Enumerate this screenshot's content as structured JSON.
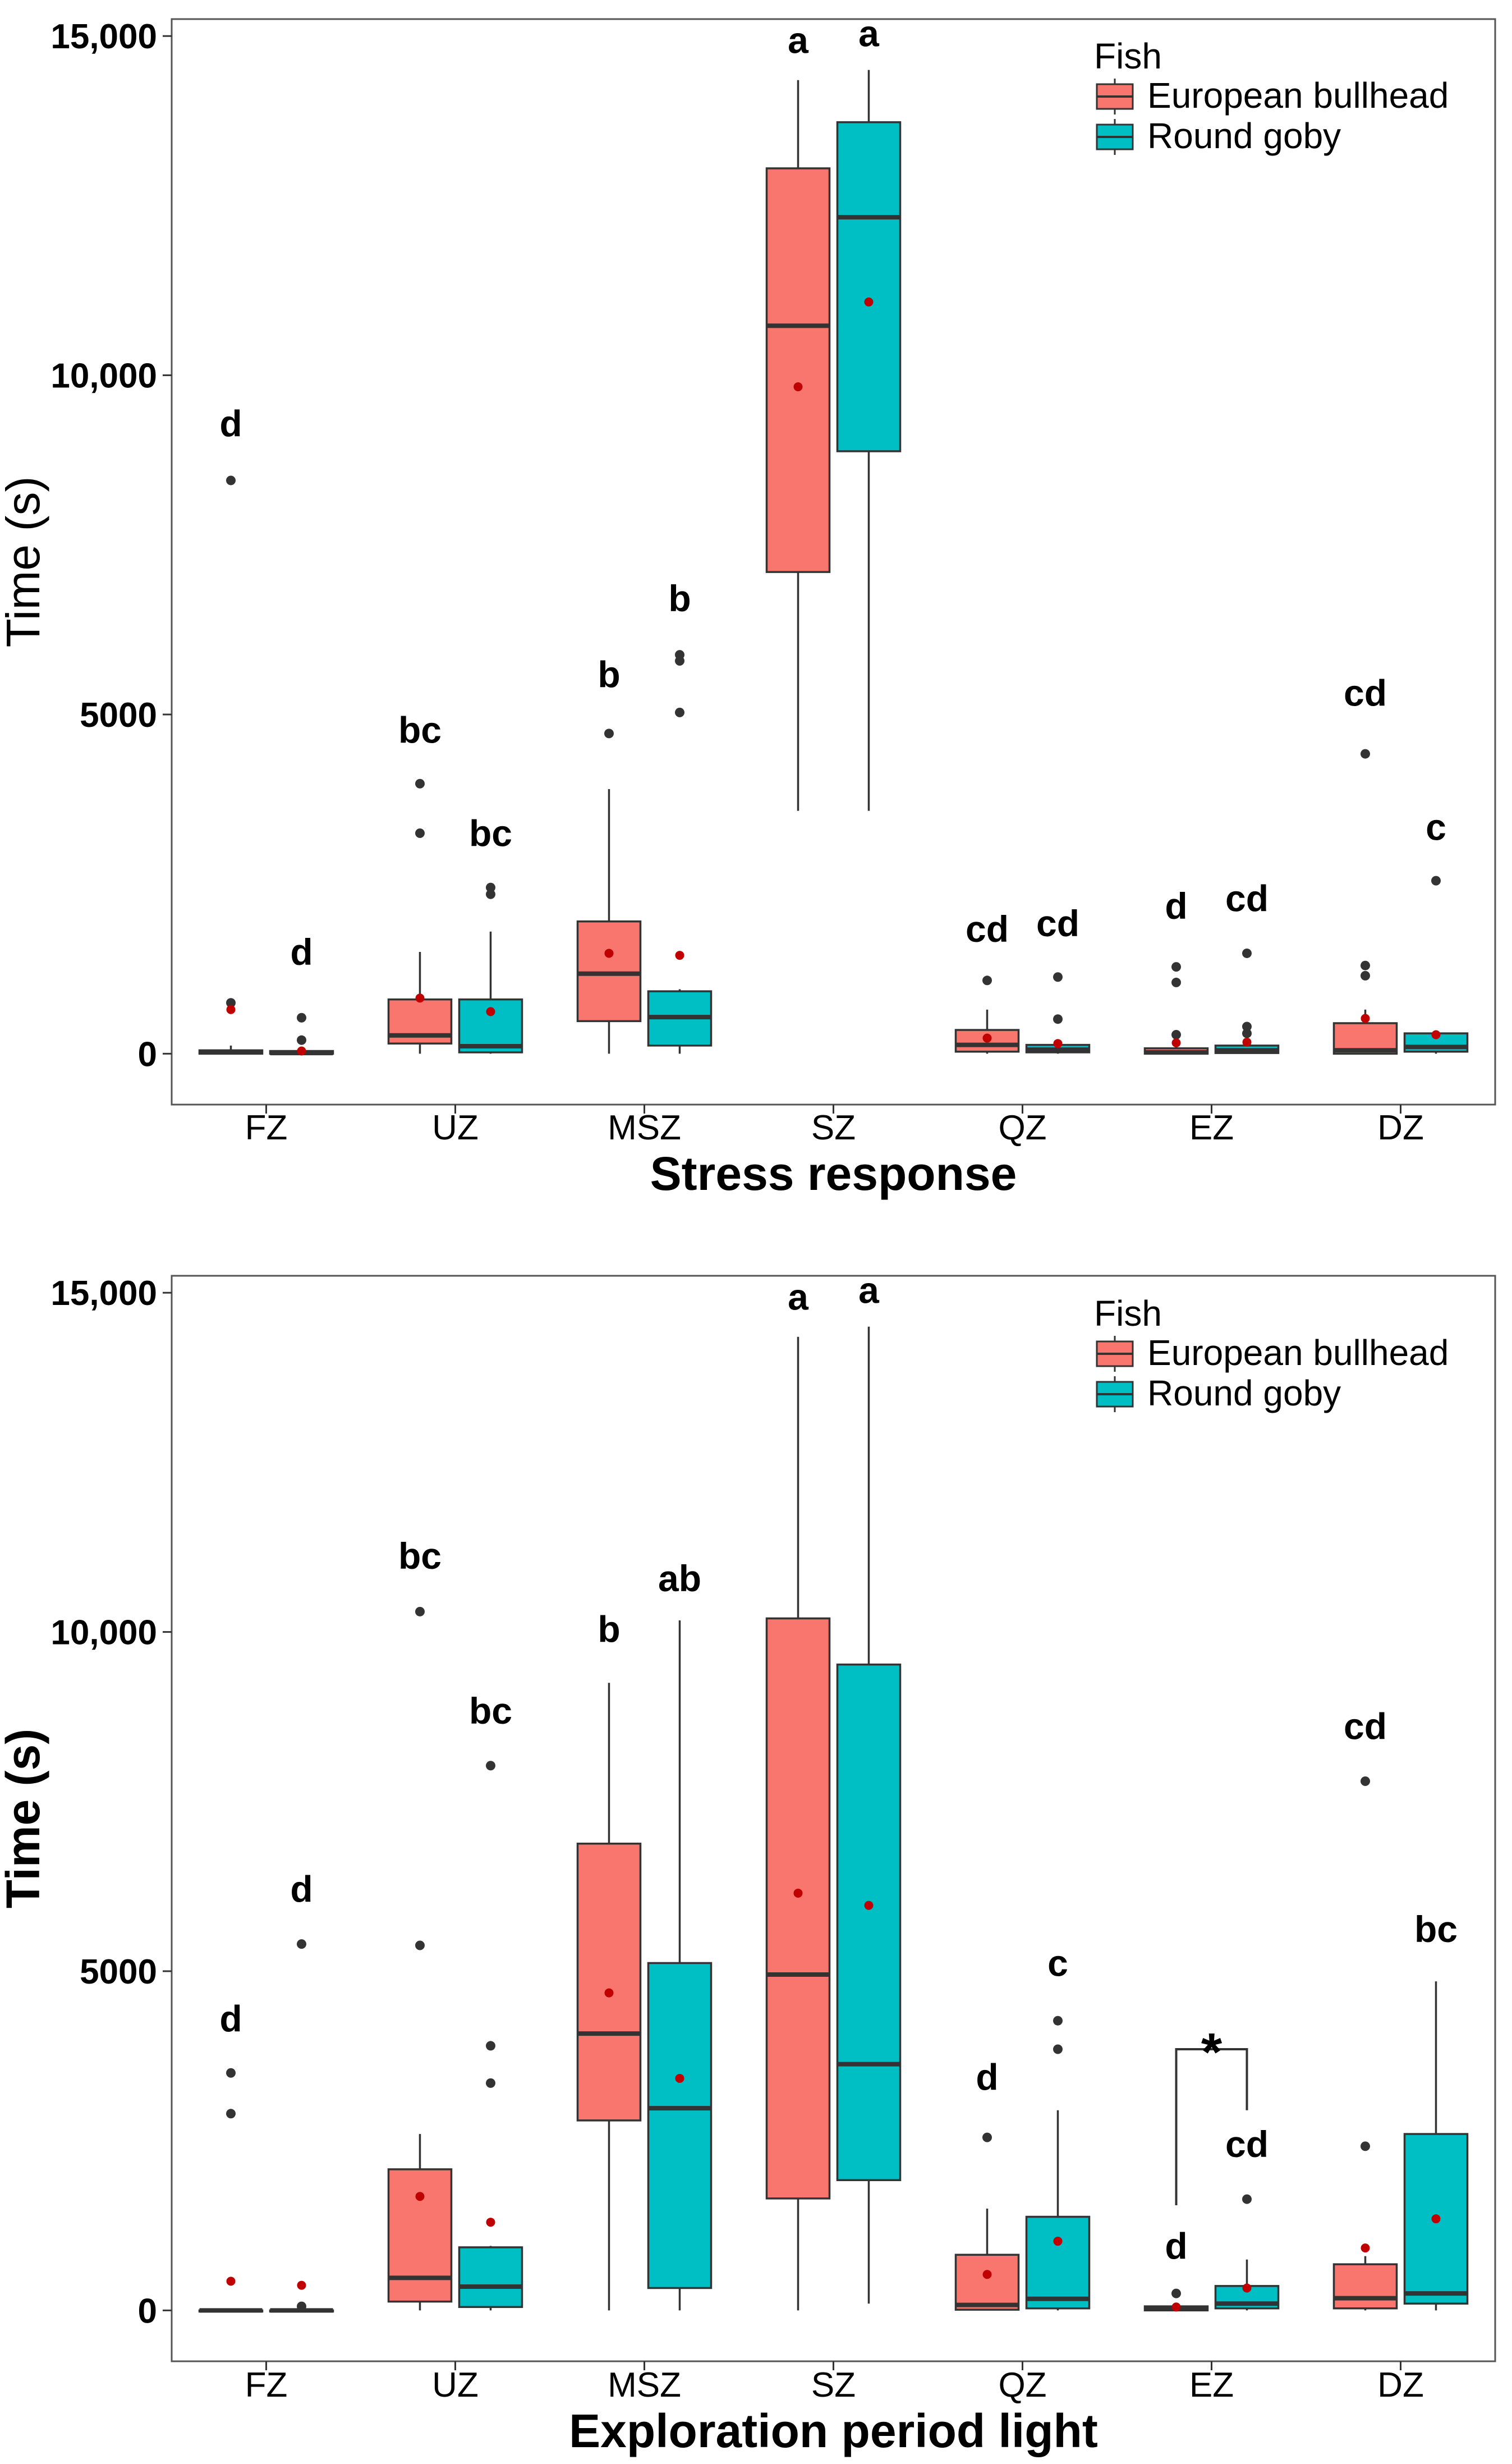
{
  "colors": {
    "bullhead": "#F8766D",
    "goby": "#00BFC4",
    "mean": "#C00000",
    "outlier": "#333333",
    "line": "#333333"
  },
  "chart_data": [
    {
      "type": "box",
      "xlabel": "Stress response",
      "ylabel": "Time (s)",
      "ylim": [
        -750,
        15250
      ],
      "yticks": [
        0,
        5000,
        10000,
        15000
      ],
      "ytick_labels": [
        "0",
        "5000",
        "10,000",
        "15,000"
      ],
      "categories": [
        "FZ",
        "UZ",
        "MSZ",
        "SZ",
        "QZ",
        "EZ",
        "DZ"
      ],
      "grid": false,
      "legend": {
        "title": "Fish",
        "position": "top-right",
        "entries": [
          "European bullhead",
          "Round goby"
        ]
      },
      "series": [
        {
          "name": "European bullhead",
          "boxes": [
            {
              "q1": 0,
              "median": 20,
              "q3": 50,
              "whisker_low": 0,
              "whisker_high": 120,
              "mean": 650,
              "outliers": [
                750,
                8450
              ],
              "letter": "d",
              "letter_y": 9100
            },
            {
              "q1": 150,
              "median": 270,
              "q3": 800,
              "whisker_low": 0,
              "whisker_high": 1500,
              "mean": 820,
              "outliers": [
                3250,
                3980
              ],
              "letter": "bc",
              "letter_y": 4580
            },
            {
              "q1": 480,
              "median": 1180,
              "q3": 1950,
              "whisker_low": 0,
              "whisker_high": 3900,
              "mean": 1480,
              "outliers": [
                4720
              ],
              "letter": "b",
              "letter_y": 5400
            },
            {
              "q1": 7100,
              "median": 10730,
              "q3": 13050,
              "whisker_low": 3580,
              "whisker_high": 14350,
              "mean": 9830,
              "outliers": [],
              "letter": "a",
              "letter_y": 14750
            },
            {
              "q1": 30,
              "median": 130,
              "q3": 350,
              "whisker_low": 0,
              "whisker_high": 650,
              "mean": 230,
              "outliers": [
                1080
              ],
              "letter": "cd",
              "letter_y": 1650
            },
            {
              "q1": 0,
              "median": 20,
              "q3": 80,
              "whisker_low": 0,
              "whisker_high": 180,
              "mean": 160,
              "outliers": [
                280,
                1050,
                1280
              ],
              "letter": "d",
              "letter_y": 1990
            },
            {
              "q1": 0,
              "median": 50,
              "q3": 450,
              "whisker_low": 0,
              "whisker_high": 650,
              "mean": 520,
              "outliers": [
                1150,
                1300,
                4420
              ],
              "letter": "cd",
              "letter_y": 5130
            }
          ]
        },
        {
          "name": "Round goby",
          "boxes": [
            {
              "q1": 0,
              "median": 10,
              "q3": 40,
              "whisker_low": 0,
              "whisker_high": 80,
              "mean": 40,
              "outliers": [
                200,
                530
              ],
              "letter": "d",
              "letter_y": 1310
            },
            {
              "q1": 20,
              "median": 110,
              "q3": 800,
              "whisker_low": 0,
              "whisker_high": 1800,
              "mean": 620,
              "outliers": [
                2350,
                2450
              ],
              "letter": "bc",
              "letter_y": 3060
            },
            {
              "q1": 120,
              "median": 540,
              "q3": 920,
              "whisker_low": 0,
              "whisker_high": 950,
              "mean": 1450,
              "outliers": [
                5030,
                5790,
                5880
              ],
              "letter": "b",
              "letter_y": 6520
            },
            {
              "q1": 8880,
              "median": 12330,
              "q3": 13730,
              "whisker_low": 3580,
              "whisker_high": 14500,
              "mean": 11080,
              "outliers": [],
              "letter": "a",
              "letter_y": 14850
            },
            {
              "q1": 20,
              "median": 60,
              "q3": 130,
              "whisker_low": 0,
              "whisker_high": 200,
              "mean": 150,
              "outliers": [
                510,
                1130
              ],
              "letter": "cd",
              "letter_y": 1730
            },
            {
              "q1": 10,
              "median": 50,
              "q3": 120,
              "whisker_low": 0,
              "whisker_high": 200,
              "mean": 170,
              "outliers": [
                300,
                400,
                1480
              ],
              "letter": "cd",
              "letter_y": 2100
            },
            {
              "q1": 30,
              "median": 100,
              "q3": 300,
              "whisker_low": 0,
              "whisker_high": 330,
              "mean": 280,
              "outliers": [
                2550
              ],
              "letter": "c",
              "letter_y": 3150
            }
          ]
        }
      ]
    },
    {
      "type": "box",
      "xlabel": "Exploration period light",
      "ylabel": "Time (s)",
      "ylim": [
        -750,
        15250
      ],
      "yticks": [
        0,
        5000,
        10000,
        15000
      ],
      "ytick_labels": [
        "0",
        "5000",
        "10,000",
        "15,000"
      ],
      "categories": [
        "FZ",
        "UZ",
        "MSZ",
        "SZ",
        "QZ",
        "EZ",
        "DZ"
      ],
      "grid": false,
      "legend": {
        "title": "Fish",
        "position": "top-right",
        "entries": [
          "European bullhead",
          "Round goby"
        ]
      },
      "annotation": {
        "text": "*",
        "category": "EZ",
        "y": 3850
      },
      "series": [
        {
          "name": "European bullhead",
          "boxes": [
            {
              "q1": 0,
              "median": 0,
              "q3": 0,
              "whisker_low": 0,
              "whisker_high": 0,
              "mean": 430,
              "outliers": [
                2900,
                3500
              ],
              "letter": "d",
              "letter_y": 4110
            },
            {
              "q1": 130,
              "median": 480,
              "q3": 2080,
              "whisker_low": 0,
              "whisker_high": 2600,
              "mean": 1680,
              "outliers": [
                5380,
                10300
              ],
              "letter": "bc",
              "letter_y": 10930
            },
            {
              "q1": 2800,
              "median": 4080,
              "q3": 6880,
              "whisker_low": 0,
              "whisker_high": 9250,
              "mean": 4680,
              "outliers": [],
              "letter": "b",
              "letter_y": 9850
            },
            {
              "q1": 1650,
              "median": 4950,
              "q3": 10200,
              "whisker_low": 0,
              "whisker_high": 14350,
              "mean": 6150,
              "outliers": [],
              "letter": "a",
              "letter_y": 14750
            },
            {
              "q1": 10,
              "median": 80,
              "q3": 820,
              "whisker_low": 0,
              "whisker_high": 1500,
              "mean": 530,
              "outliers": [
                2550
              ],
              "letter": "d",
              "letter_y": 3250
            },
            {
              "q1": 0,
              "median": 20,
              "q3": 60,
              "whisker_low": 0,
              "whisker_high": 100,
              "mean": 50,
              "outliers": [
                250
              ],
              "letter": "d",
              "letter_y": 760
            },
            {
              "q1": 30,
              "median": 180,
              "q3": 680,
              "whisker_low": 0,
              "whisker_high": 800,
              "mean": 920,
              "outliers": [
                2420,
                7800
              ],
              "letter": "cd",
              "letter_y": 8420
            }
          ]
        },
        {
          "name": "Round goby",
          "boxes": [
            {
              "q1": 0,
              "median": 0,
              "q3": 0,
              "whisker_low": 0,
              "whisker_high": 0,
              "mean": 370,
              "outliers": [
                60,
                5400
              ],
              "letter": "d",
              "letter_y": 6020
            },
            {
              "q1": 50,
              "median": 350,
              "q3": 930,
              "whisker_low": 0,
              "whisker_high": 950,
              "mean": 1300,
              "outliers": [
                3350,
                3900,
                8030
              ],
              "letter": "bc",
              "letter_y": 8650
            },
            {
              "q1": 330,
              "median": 2980,
              "q3": 5120,
              "whisker_low": 0,
              "whisker_high": 10170,
              "mean": 3420,
              "outliers": [],
              "letter": "ab",
              "letter_y": 10600
            },
            {
              "q1": 1920,
              "median": 3630,
              "q3": 9520,
              "whisker_low": 100,
              "whisker_high": 14500,
              "mean": 5970,
              "outliers": [],
              "letter": "a",
              "letter_y": 14850
            },
            {
              "q1": 30,
              "median": 170,
              "q3": 1380,
              "whisker_low": 0,
              "whisker_high": 2950,
              "mean": 1020,
              "outliers": [
                3850,
                4270
              ],
              "letter": "c",
              "letter_y": 4930
            },
            {
              "q1": 30,
              "median": 100,
              "q3": 360,
              "whisker_low": 0,
              "whisker_high": 750,
              "mean": 330,
              "outliers": [
                1640
              ],
              "letter": "cd",
              "letter_y": 2260
            },
            {
              "q1": 100,
              "median": 250,
              "q3": 2600,
              "whisker_low": 0,
              "whisker_high": 4850,
              "mean": 1350,
              "outliers": [],
              "letter": "bc",
              "letter_y": 5430
            }
          ]
        }
      ]
    }
  ]
}
